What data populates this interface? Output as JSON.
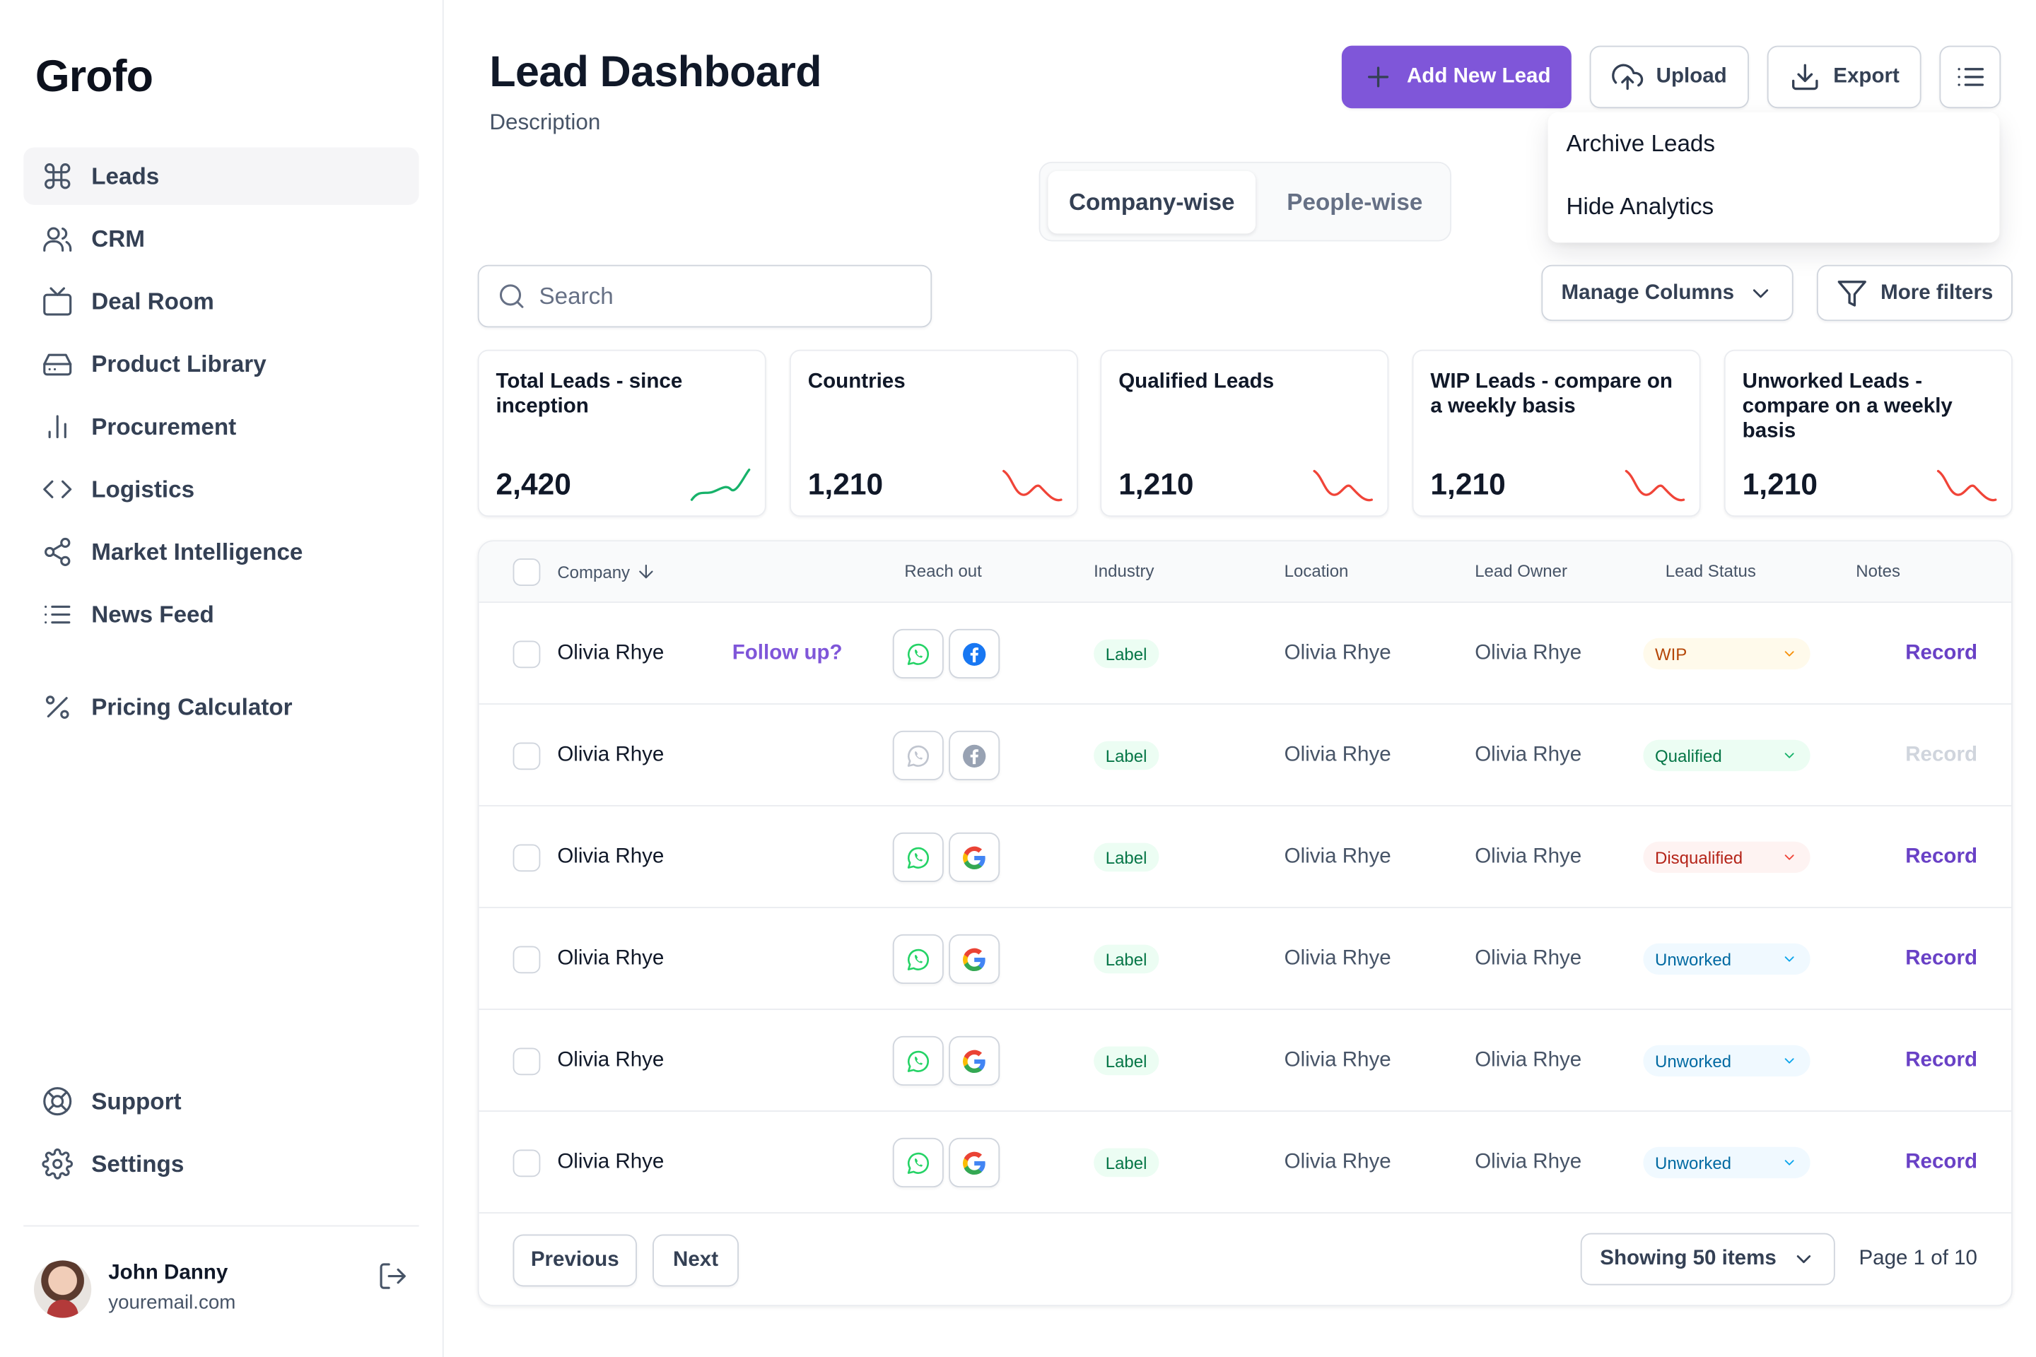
{
  "app": {
    "logo": "Grofo"
  },
  "sidebar": {
    "items": [
      {
        "label": "Leads",
        "icon": "command-icon",
        "active": true
      },
      {
        "label": "CRM",
        "icon": "users-icon"
      },
      {
        "label": "Deal Room",
        "icon": "tv-icon"
      },
      {
        "label": "Product Library",
        "icon": "hard-drive-icon"
      },
      {
        "label": "Procurement",
        "icon": "bar-chart-icon"
      },
      {
        "label": "Logistics",
        "icon": "code-icon"
      },
      {
        "label": "Market Intelligence",
        "icon": "share-icon"
      },
      {
        "label": "News Feed",
        "icon": "list-icon"
      },
      {
        "label": "Pricing Calculator",
        "icon": "percent-icon"
      }
    ],
    "bottom_items": [
      {
        "label": "Support",
        "icon": "life-buoy-icon"
      },
      {
        "label": "Settings",
        "icon": "settings-icon"
      }
    ],
    "user": {
      "name": "John Danny",
      "email": "youremail.com"
    }
  },
  "header": {
    "title": "Lead Dashboard",
    "description": "Description",
    "add_label": "Add New Lead",
    "upload_label": "Upload",
    "export_label": "Export"
  },
  "menu": {
    "items": [
      "Archive Leads",
      "Hide Analytics"
    ]
  },
  "segments": {
    "active": "Company-wise",
    "inactive": "People-wise"
  },
  "search": {
    "placeholder": "Search",
    "value": ""
  },
  "filters": {
    "manage_columns": "Manage Columns",
    "more_filters": "More filters"
  },
  "stats": [
    {
      "title": "Total Leads - since inception",
      "value": "2,420",
      "trend": "up"
    },
    {
      "title": "Countries",
      "value": "1,210",
      "trend": "down"
    },
    {
      "title": "Qualified Leads",
      "value": "1,210",
      "trend": "down"
    },
    {
      "title": "WIP Leads - compare on a weekly basis",
      "value": "1,210",
      "trend": "down"
    },
    {
      "title": "Unworked Leads - compare on a weekly basis",
      "value": "1,210",
      "trend": "down"
    }
  ],
  "colors": {
    "accent": "#7f56d9",
    "trend_up": "#17b26a",
    "trend_down": "#f04438"
  },
  "table": {
    "columns": [
      "Company",
      "Reach out",
      "Industry",
      "Location",
      "Lead Owner",
      "Lead Status",
      "Notes"
    ],
    "rows": [
      {
        "company": "Olivia Rhye",
        "follow_up": "Follow up?",
        "channel": "facebook",
        "industry": "Label",
        "location": "Olivia Rhye",
        "owner": "Olivia Rhye",
        "status": "WIP",
        "notes": "Record"
      },
      {
        "company": "Olivia Rhye",
        "follow_up": "",
        "channel": "facebook-disabled",
        "industry": "Label",
        "location": "Olivia Rhye",
        "owner": "Olivia Rhye",
        "status": "Qualified",
        "notes": "Record"
      },
      {
        "company": "Olivia Rhye",
        "follow_up": "",
        "channel": "google",
        "industry": "Label",
        "location": "Olivia Rhye",
        "owner": "Olivia Rhye",
        "status": "Disqualified",
        "notes": "Record"
      },
      {
        "company": "Olivia Rhye",
        "follow_up": "",
        "channel": "google",
        "industry": "Label",
        "location": "Olivia Rhye",
        "owner": "Olivia Rhye",
        "status": "Unworked",
        "notes": "Record"
      },
      {
        "company": "Olivia Rhye",
        "follow_up": "",
        "channel": "google",
        "industry": "Label",
        "location": "Olivia Rhye",
        "owner": "Olivia Rhye",
        "status": "Unworked",
        "notes": "Record"
      },
      {
        "company": "Olivia Rhye",
        "follow_up": "",
        "channel": "google",
        "industry": "Label",
        "location": "Olivia Rhye",
        "owner": "Olivia Rhye",
        "status": "Unworked",
        "notes": "Record"
      }
    ],
    "previous_label": "Previous",
    "next_label": "Next",
    "showing_label": "Showing 50 items",
    "page_info": "Page 1 of 10"
  }
}
